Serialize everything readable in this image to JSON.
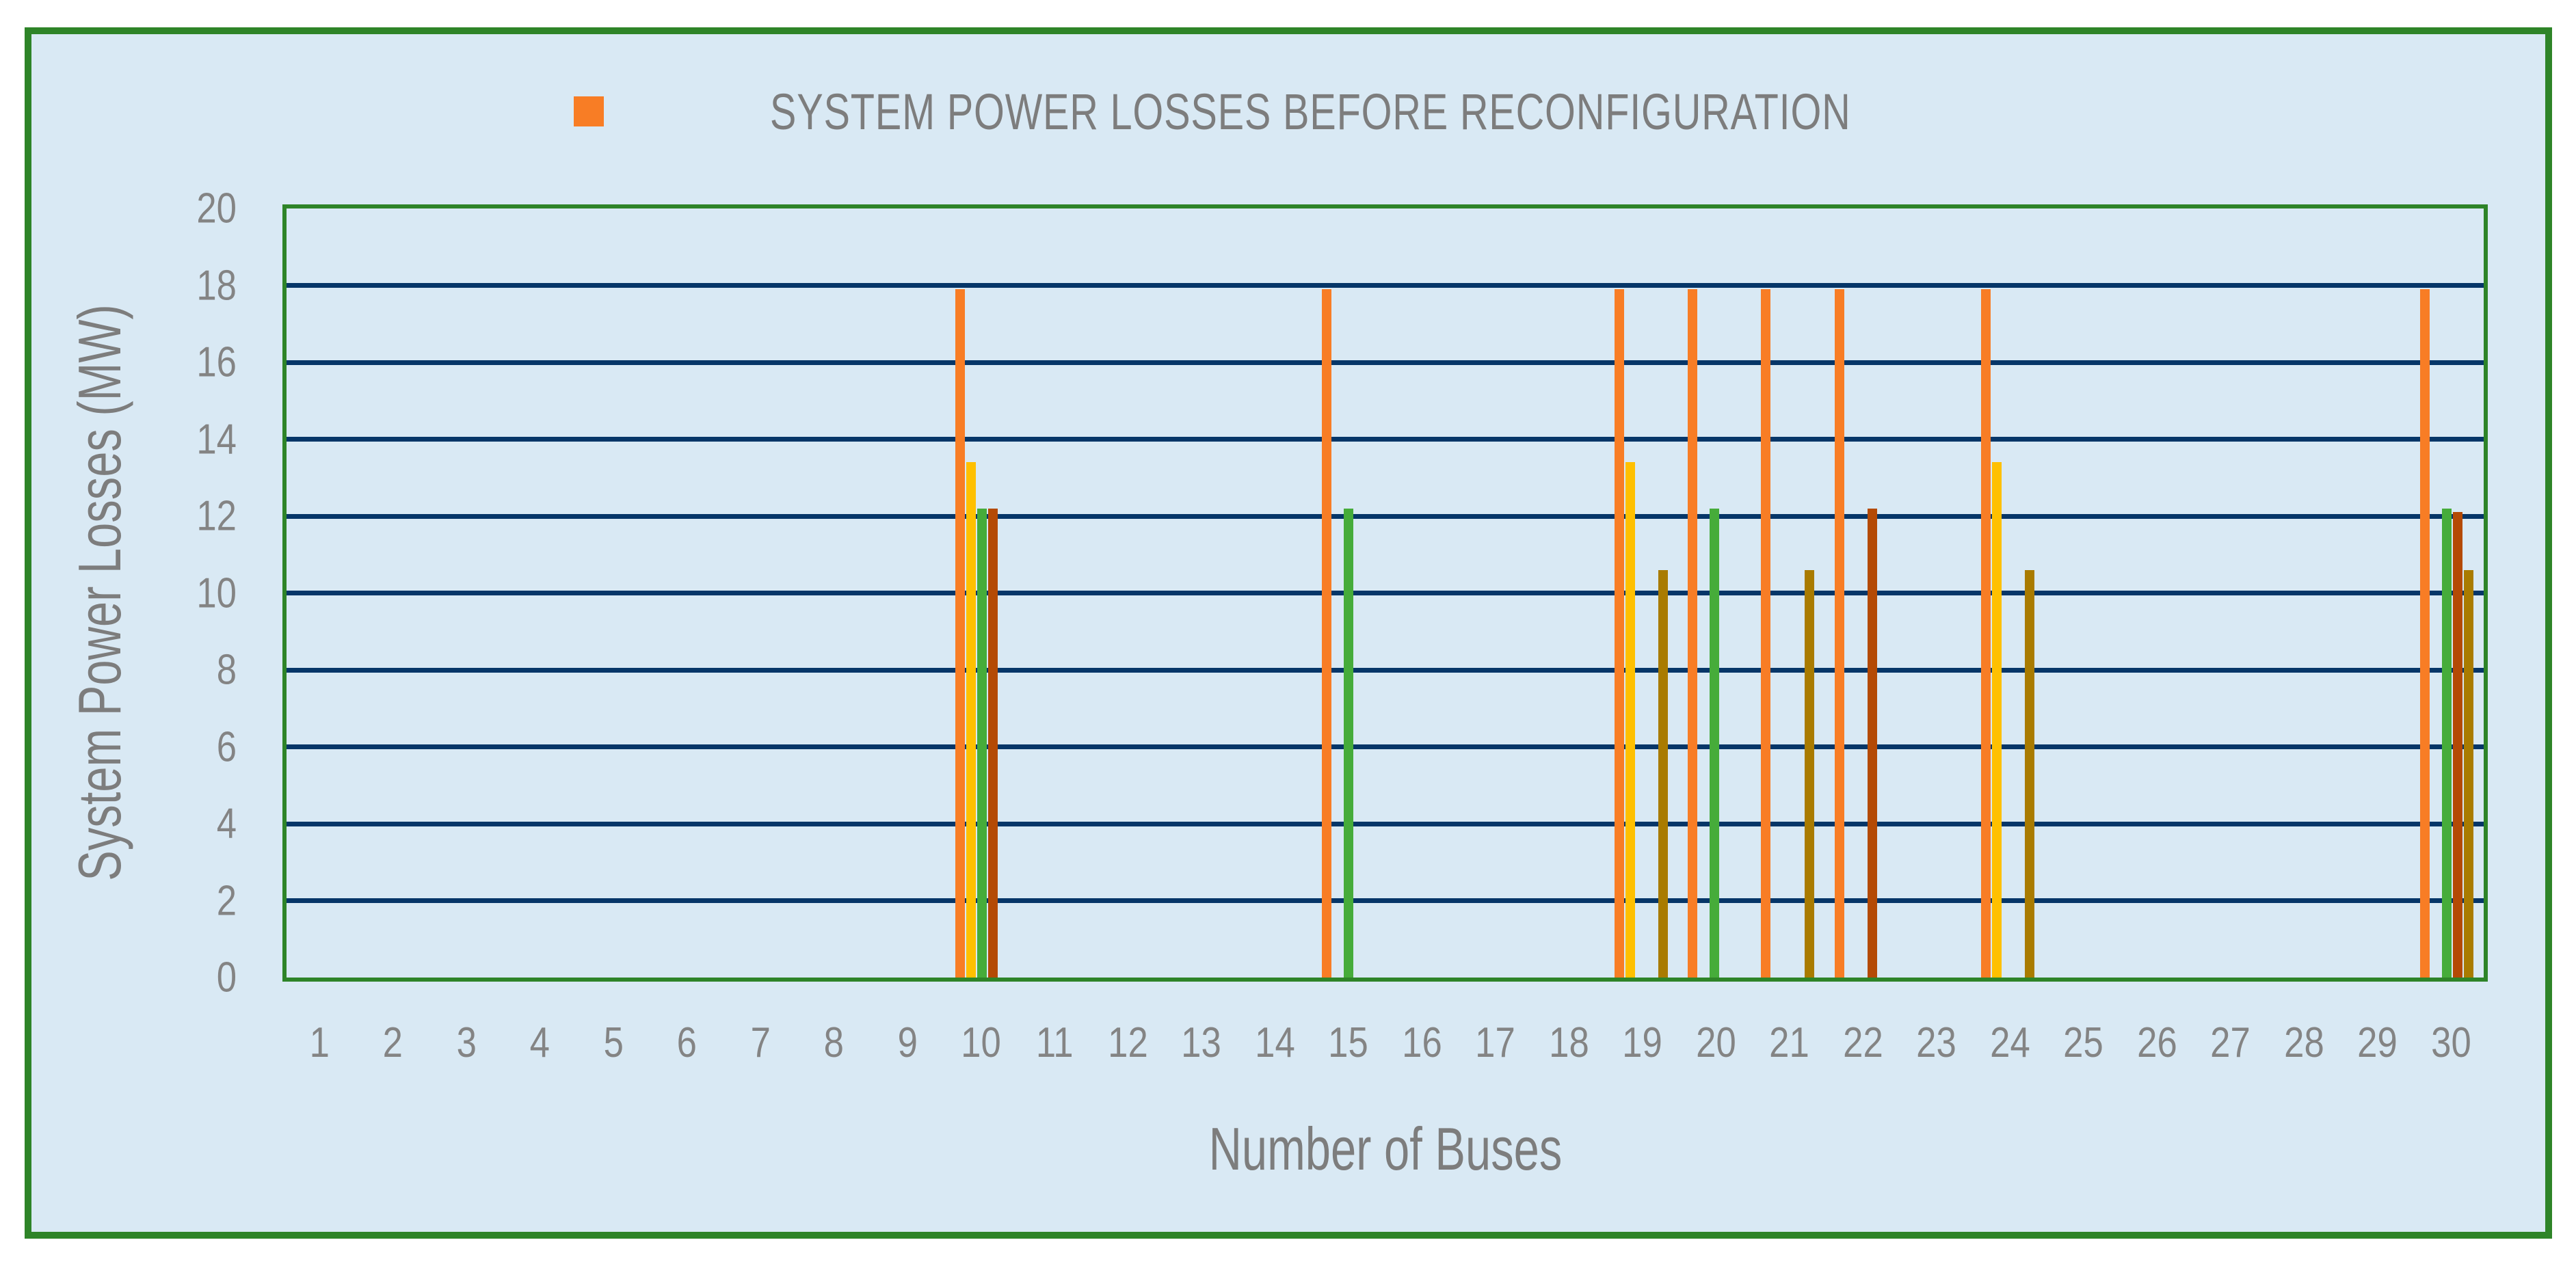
{
  "chart_data": {
    "type": "bar",
    "legend": [
      {
        "label": "SYSTEM POWER LOSSES BEFORE RECONFIGURATION",
        "color": "#F87D25",
        "position": "top-center"
      }
    ],
    "xlabel": "Number of Buses",
    "ylabel": "System Power Losses (MW)",
    "ylim": [
      0,
      20
    ],
    "ytick_step": 2,
    "yticks": [
      0,
      2,
      4,
      6,
      8,
      10,
      12,
      14,
      16,
      18,
      20
    ],
    "grid": "horizontal",
    "categories": [
      1,
      2,
      3,
      4,
      5,
      6,
      7,
      8,
      9,
      10,
      11,
      12,
      13,
      14,
      15,
      16,
      17,
      18,
      19,
      20,
      21,
      22,
      23,
      24,
      25,
      26,
      27,
      28,
      29,
      30
    ],
    "series": [
      {
        "name": "SYSTEM POWER LOSSES BEFORE RECONFIGURATION",
        "color": "#F87D25",
        "values": [
          0,
          0,
          0,
          0,
          0,
          0,
          0,
          0,
          0,
          17.9,
          0,
          0,
          0,
          0,
          17.9,
          0,
          0,
          0,
          17.9,
          17.9,
          17.9,
          17.9,
          0,
          17.9,
          0,
          0,
          0,
          0,
          0,
          17.9
        ]
      },
      {
        "name": "",
        "color": "#FFC000",
        "values": [
          0,
          0,
          0,
          0,
          0,
          0,
          0,
          0,
          0,
          13.4,
          0,
          0,
          0,
          0,
          0,
          0,
          0,
          0,
          13.4,
          0,
          0,
          0,
          0,
          13.4,
          0,
          0,
          0,
          0,
          0,
          0
        ]
      },
      {
        "name": "",
        "color": "#46AC3A",
        "values": [
          0,
          0,
          0,
          0,
          0,
          0,
          0,
          0,
          0,
          12.2,
          0,
          0,
          0,
          0,
          12.2,
          0,
          0,
          0,
          0,
          12.2,
          0,
          0,
          0,
          0,
          0,
          0,
          0,
          0,
          0,
          12.2
        ]
      },
      {
        "name": "",
        "color": "#B44A05",
        "values": [
          0,
          0,
          0,
          0,
          0,
          0,
          0,
          0,
          0,
          12.2,
          0,
          0,
          0,
          0,
          0,
          0,
          0,
          0,
          0,
          0,
          0,
          12.2,
          0,
          0,
          0,
          0,
          0,
          0,
          0,
          12.1
        ]
      },
      {
        "name": "",
        "color": "#A97B00",
        "values": [
          0,
          0,
          0,
          0,
          0,
          0,
          0,
          0,
          0,
          0,
          0,
          0,
          0,
          0,
          0,
          0,
          0,
          0,
          10.6,
          0,
          10.6,
          0,
          0,
          10.6,
          0,
          0,
          0,
          0,
          0,
          10.6
        ]
      }
    ]
  },
  "colors": {
    "frame_border": "#2E8428",
    "chart_background": "#D9E9F4",
    "gridline": "#063668",
    "text_gray": "#7d7d7d"
  }
}
